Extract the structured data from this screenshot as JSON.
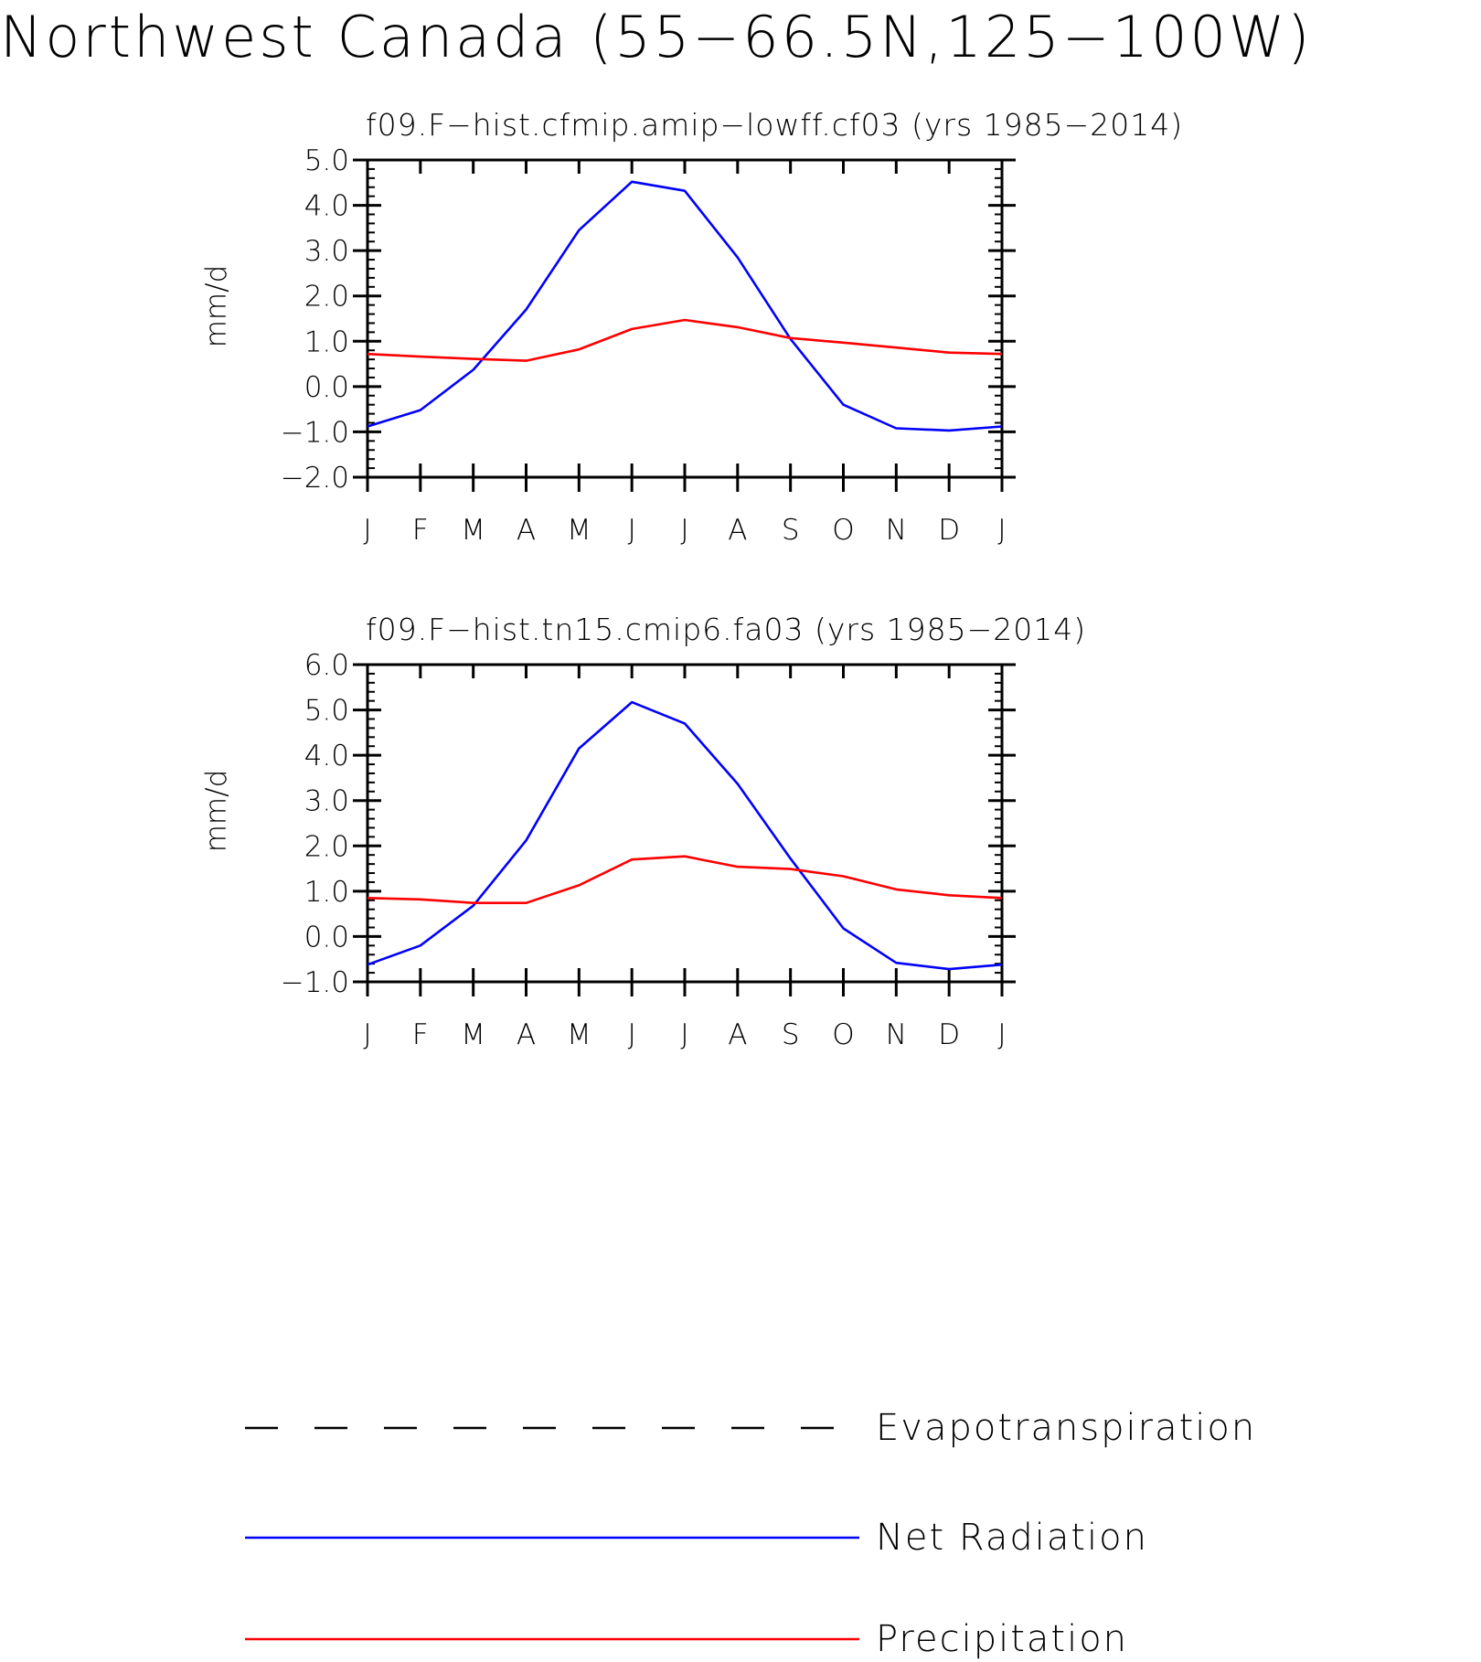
{
  "title": "Northwest Canada (55−66.5N,125−100W)",
  "colors": {
    "net_radiation": "#0000ff",
    "precipitation": "#ff0000",
    "evapotranspiration": "#000000"
  },
  "chart_data": [
    {
      "type": "line",
      "title": "f09.F−hist.cfmip.amip−lowff.cf03 (yrs 1985−2014)",
      "ylabel": "mm/d",
      "xlabel": "",
      "categories": [
        "J",
        "F",
        "M",
        "A",
        "M",
        "J",
        "J",
        "A",
        "S",
        "O",
        "N",
        "D",
        "J"
      ],
      "ylim": [
        -2.0,
        5.0
      ],
      "yticks": [
        "−2.0",
        "−1.0",
        "0.0",
        "1.0",
        "2.0",
        "3.0",
        "4.0",
        "5.0"
      ],
      "ytick_values": [
        -2,
        -1,
        0,
        1,
        2,
        3,
        4,
        5
      ],
      "grid": false,
      "series": [
        {
          "name": "Net Radiation",
          "color": "#0000ff",
          "values": [
            -0.88,
            -0.52,
            0.37,
            1.7,
            3.45,
            4.52,
            4.32,
            2.85,
            1.05,
            -0.4,
            -0.92,
            -0.97,
            -0.88
          ]
        },
        {
          "name": "Precipitation",
          "color": "#ff0000",
          "values": [
            0.72,
            0.66,
            0.61,
            0.57,
            0.82,
            1.27,
            1.47,
            1.31,
            1.07,
            0.97,
            0.86,
            0.75,
            0.72
          ]
        }
      ]
    },
    {
      "type": "line",
      "title": "f09.F−hist.tn15.cmip6.fa03 (yrs 1985−2014)",
      "ylabel": "mm/d",
      "xlabel": "",
      "categories": [
        "J",
        "F",
        "M",
        "A",
        "M",
        "J",
        "J",
        "A",
        "S",
        "O",
        "N",
        "D",
        "J"
      ],
      "ylim": [
        -1.0,
        6.0
      ],
      "yticks": [
        "−1.0",
        "0.0",
        "1.0",
        "2.0",
        "3.0",
        "4.0",
        "5.0",
        "6.0"
      ],
      "ytick_values": [
        -1,
        0,
        1,
        2,
        3,
        4,
        5,
        6
      ],
      "grid": false,
      "series": [
        {
          "name": "Net Radiation",
          "color": "#0000ff",
          "values": [
            -0.62,
            -0.2,
            0.68,
            2.12,
            4.15,
            5.17,
            4.7,
            3.37,
            1.72,
            0.18,
            -0.58,
            -0.72,
            -0.62
          ]
        },
        {
          "name": "Precipitation",
          "color": "#ff0000",
          "values": [
            0.85,
            0.82,
            0.74,
            0.74,
            1.13,
            1.7,
            1.77,
            1.54,
            1.49,
            1.33,
            1.04,
            0.91,
            0.85
          ]
        }
      ]
    }
  ],
  "legend": {
    "placement": "bottom",
    "entries": [
      {
        "label": "Evapotranspiration",
        "style": "dashed",
        "color": "#000000"
      },
      {
        "label": "Net Radiation",
        "style": "solid",
        "color": "#0000ff"
      },
      {
        "label": "Precipitation",
        "style": "solid",
        "color": "#ff0000"
      }
    ]
  }
}
